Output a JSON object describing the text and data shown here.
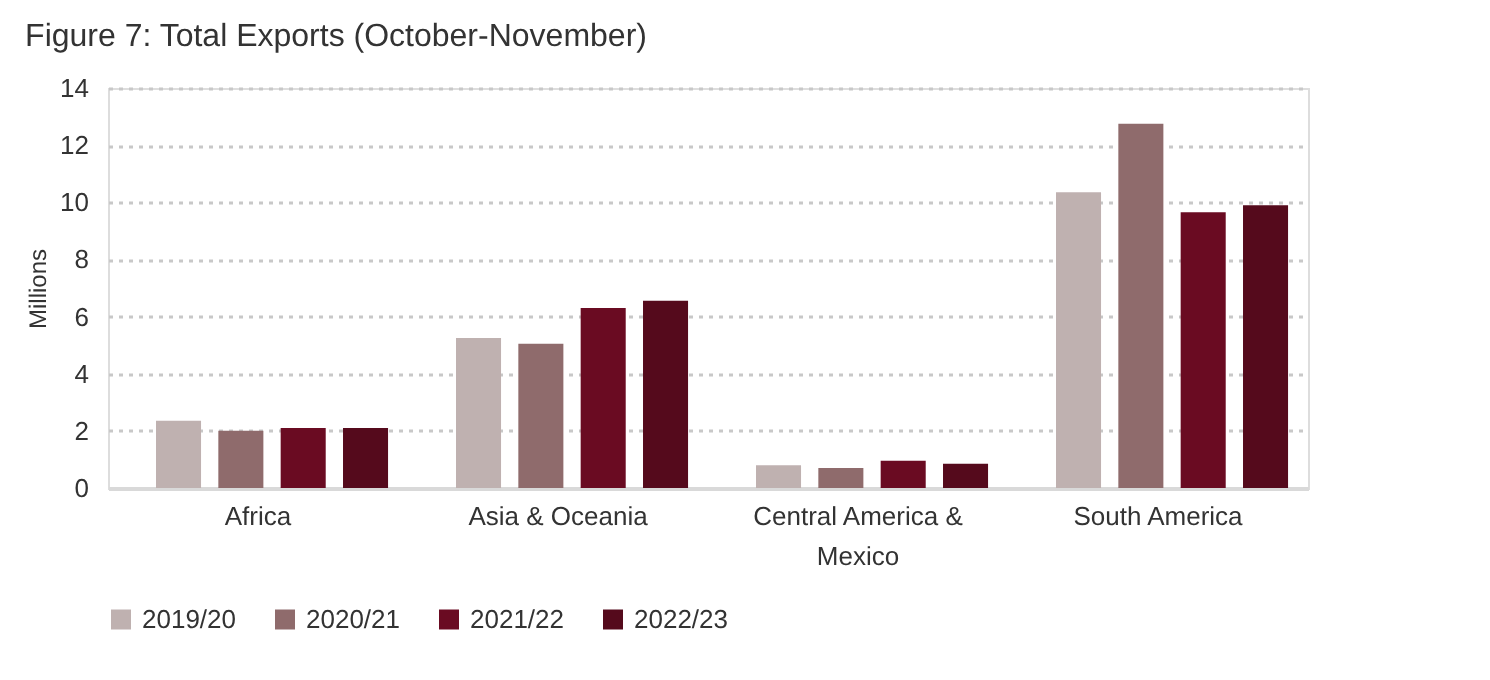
{
  "chart_data": {
    "type": "bar",
    "title": "Figure 7: Total Exports (October-November)",
    "ylabel": "Millions",
    "categories": [
      "Africa",
      "Asia & Oceania",
      "Central America & Mexico",
      "South America"
    ],
    "series": [
      {
        "name": "2019/20",
        "color": "#bfb1b0",
        "values": [
          2.35,
          5.25,
          0.8,
          10.35
        ]
      },
      {
        "name": "2020/21",
        "color": "#8f6b6c",
        "values": [
          2.0,
          5.05,
          0.7,
          12.75
        ]
      },
      {
        "name": "2021/22",
        "color": "#6a0b22",
        "values": [
          2.1,
          6.3,
          0.95,
          9.65
        ]
      },
      {
        "name": "2022/23",
        "color": "#550a1c",
        "values": [
          2.1,
          6.55,
          0.85,
          9.9
        ]
      }
    ],
    "ylim": [
      0,
      14
    ],
    "yticks": [
      0,
      2,
      4,
      6,
      8,
      10,
      12,
      14
    ],
    "grid": "y",
    "legend": "bottom"
  }
}
